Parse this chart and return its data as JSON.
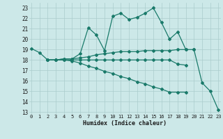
{
  "xlabel": "Humidex (Indice chaleur)",
  "x_ticks": [
    0,
    1,
    2,
    3,
    4,
    5,
    6,
    7,
    8,
    9,
    10,
    11,
    12,
    13,
    14,
    15,
    16,
    17,
    18,
    19,
    20,
    21,
    22,
    23
  ],
  "y_ticks": [
    13,
    14,
    15,
    16,
    17,
    18,
    19,
    20,
    21,
    22,
    23
  ],
  "xlim": [
    -0.3,
    23.3
  ],
  "ylim": [
    12.8,
    23.5
  ],
  "bg_color": "#cce8e8",
  "grid_color": "#aacccc",
  "line_color": "#1a7a6a",
  "series": [
    {
      "x": [
        0,
        1,
        2,
        3,
        4,
        5,
        6,
        7,
        8,
        9,
        10,
        11,
        12,
        13,
        14,
        15,
        16,
        17,
        18,
        19,
        20
      ],
      "y": [
        19.1,
        18.7,
        18.0,
        18.0,
        18.1,
        18.1,
        18.6,
        21.1,
        20.4,
        18.9,
        22.2,
        22.5,
        21.9,
        22.1,
        22.5,
        23.0,
        21.6,
        20.0,
        20.7,
        19.0,
        19.0
      ]
    },
    {
      "x": [
        2,
        3,
        4,
        5,
        6,
        7,
        8,
        9,
        10,
        11,
        12,
        13,
        14,
        15,
        16,
        17,
        18,
        19
      ],
      "y": [
        18.0,
        18.0,
        18.1,
        18.1,
        18.2,
        18.3,
        18.5,
        18.6,
        18.7,
        18.8,
        18.8,
        18.8,
        18.9,
        18.9,
        18.9,
        18.9,
        19.0,
        19.0
      ]
    },
    {
      "x": [
        2,
        3,
        4,
        5,
        6,
        7,
        8,
        9,
        10,
        11,
        12,
        13,
        14,
        15,
        16,
        17,
        18,
        19
      ],
      "y": [
        18.0,
        18.0,
        18.0,
        18.0,
        18.0,
        18.0,
        18.0,
        18.0,
        18.0,
        18.0,
        18.0,
        18.0,
        18.0,
        18.0,
        18.0,
        18.0,
        17.6,
        17.5
      ]
    },
    {
      "x": [
        2,
        3,
        4,
        5,
        6,
        7,
        8,
        9,
        10,
        11,
        12,
        13,
        14,
        15,
        16,
        17,
        18,
        19
      ],
      "y": [
        18.0,
        18.0,
        18.0,
        17.9,
        17.7,
        17.4,
        17.2,
        16.9,
        16.7,
        16.4,
        16.2,
        15.9,
        15.7,
        15.4,
        15.2,
        14.9,
        14.9,
        14.9
      ]
    },
    {
      "x": [
        20,
        21,
        22,
        23
      ],
      "y": [
        19.0,
        15.8,
        15.0,
        13.2
      ]
    }
  ]
}
